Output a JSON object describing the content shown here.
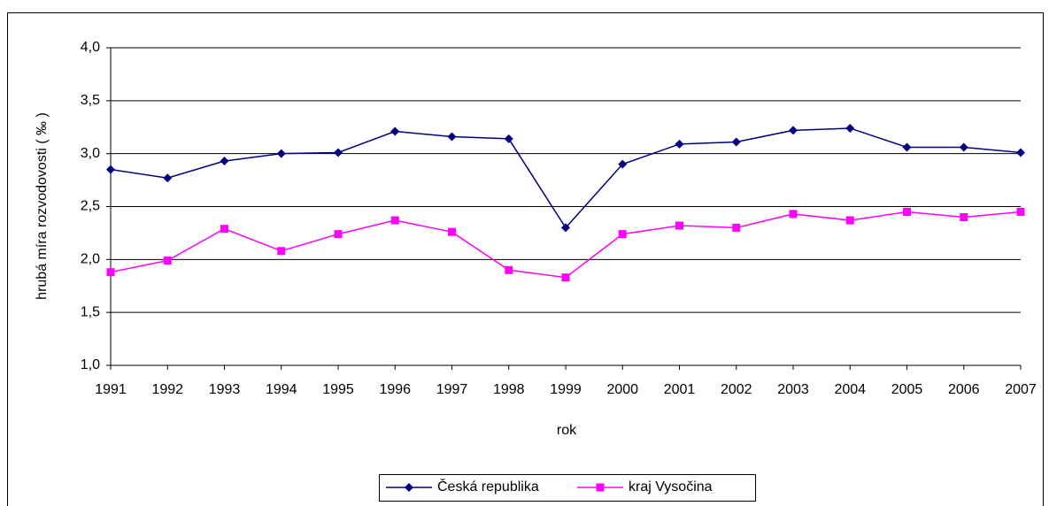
{
  "chart_data": {
    "type": "line",
    "x_label": "rok",
    "y_label": "hrubá míra rozvodovosti ( ‰ )",
    "categories": [
      "1991",
      "1992",
      "1993",
      "1994",
      "1995",
      "1996",
      "1997",
      "1998",
      "1999",
      "2000",
      "2001",
      "2002",
      "2003",
      "2004",
      "2005",
      "2006",
      "2007"
    ],
    "series": [
      {
        "name": "Česká republika",
        "color": "#000080",
        "marker": "diamond",
        "values": [
          2.85,
          2.77,
          2.93,
          3.0,
          3.01,
          3.21,
          3.16,
          3.14,
          2.3,
          2.9,
          3.09,
          3.11,
          3.22,
          3.24,
          3.06,
          3.06,
          3.01
        ]
      },
      {
        "name": "kraj Vysočina",
        "color": "#ff00ff",
        "marker": "square",
        "values": [
          1.88,
          1.99,
          2.29,
          2.08,
          2.24,
          2.37,
          2.26,
          1.9,
          1.83,
          2.24,
          2.32,
          2.3,
          2.43,
          2.37,
          2.45,
          2.4,
          2.45
        ]
      }
    ],
    "ylim": [
      1.0,
      4.0
    ],
    "yticks": [
      {
        "value": 1.0,
        "label": "1,0"
      },
      {
        "value": 1.5,
        "label": "1,5"
      },
      {
        "value": 2.0,
        "label": "2,0"
      },
      {
        "value": 2.5,
        "label": "2,5"
      },
      {
        "value": 3.0,
        "label": "3,0"
      },
      {
        "value": 3.5,
        "label": "3,5"
      },
      {
        "value": 4.0,
        "label": "4,0"
      }
    ],
    "grid": true,
    "legend": "bottom"
  }
}
